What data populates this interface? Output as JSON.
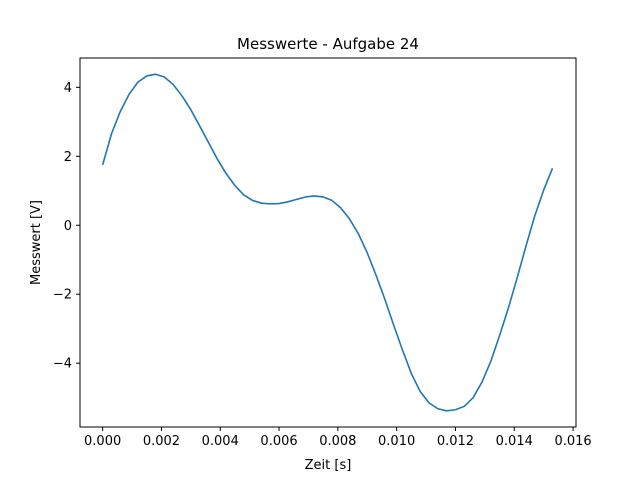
{
  "chart_data": {
    "type": "line",
    "title": "Messwerte - Aufgabe 24",
    "xlabel": "Zeit [s]",
    "ylabel": "Messwert [V]",
    "xlim": [
      -0.00077,
      0.0161
    ],
    "ylim": [
      -5.85,
      4.85
    ],
    "xticks": [
      0.0,
      0.002,
      0.004,
      0.006,
      0.008,
      0.01,
      0.012,
      0.014,
      0.016
    ],
    "xtick_labels": [
      "0.000",
      "0.002",
      "0.004",
      "0.006",
      "0.008",
      "0.010",
      "0.012",
      "0.014",
      "0.016"
    ],
    "yticks": [
      -4,
      -2,
      0,
      2,
      4
    ],
    "ytick_labels": [
      "−4",
      "−2",
      "0",
      "2",
      "4"
    ],
    "grid": false,
    "series": [
      {
        "color": "#1f77b4",
        "x": [
          0.0,
          0.0003,
          0.0006,
          0.0009,
          0.0012,
          0.0015,
          0.0018,
          0.0021,
          0.0024,
          0.0027,
          0.003,
          0.0033,
          0.0036,
          0.0039,
          0.0042,
          0.0045,
          0.0048,
          0.0051,
          0.0054,
          0.0057,
          0.006,
          0.0063,
          0.0066,
          0.0069,
          0.0072,
          0.0075,
          0.0078,
          0.0081,
          0.0084,
          0.0087,
          0.009,
          0.0093,
          0.0096,
          0.0099,
          0.0102,
          0.0105,
          0.0108,
          0.0111,
          0.0114,
          0.0117,
          0.012,
          0.0123,
          0.0126,
          0.0129,
          0.0132,
          0.0135,
          0.0138,
          0.0141,
          0.0144,
          0.0147,
          0.015,
          0.0153
        ],
        "y": [
          1.75,
          2.65,
          3.3,
          3.8,
          4.15,
          4.33,
          4.38,
          4.3,
          4.08,
          3.75,
          3.35,
          2.88,
          2.4,
          1.92,
          1.5,
          1.15,
          0.88,
          0.72,
          0.64,
          0.62,
          0.63,
          0.68,
          0.75,
          0.82,
          0.85,
          0.82,
          0.72,
          0.5,
          0.18,
          -0.25,
          -0.8,
          -1.45,
          -2.15,
          -2.9,
          -3.62,
          -4.3,
          -4.82,
          -5.15,
          -5.32,
          -5.38,
          -5.35,
          -5.25,
          -5.0,
          -4.55,
          -3.95,
          -3.2,
          -2.4,
          -1.52,
          -0.6,
          0.28,
          1.02,
          1.65
        ]
      }
    ]
  }
}
